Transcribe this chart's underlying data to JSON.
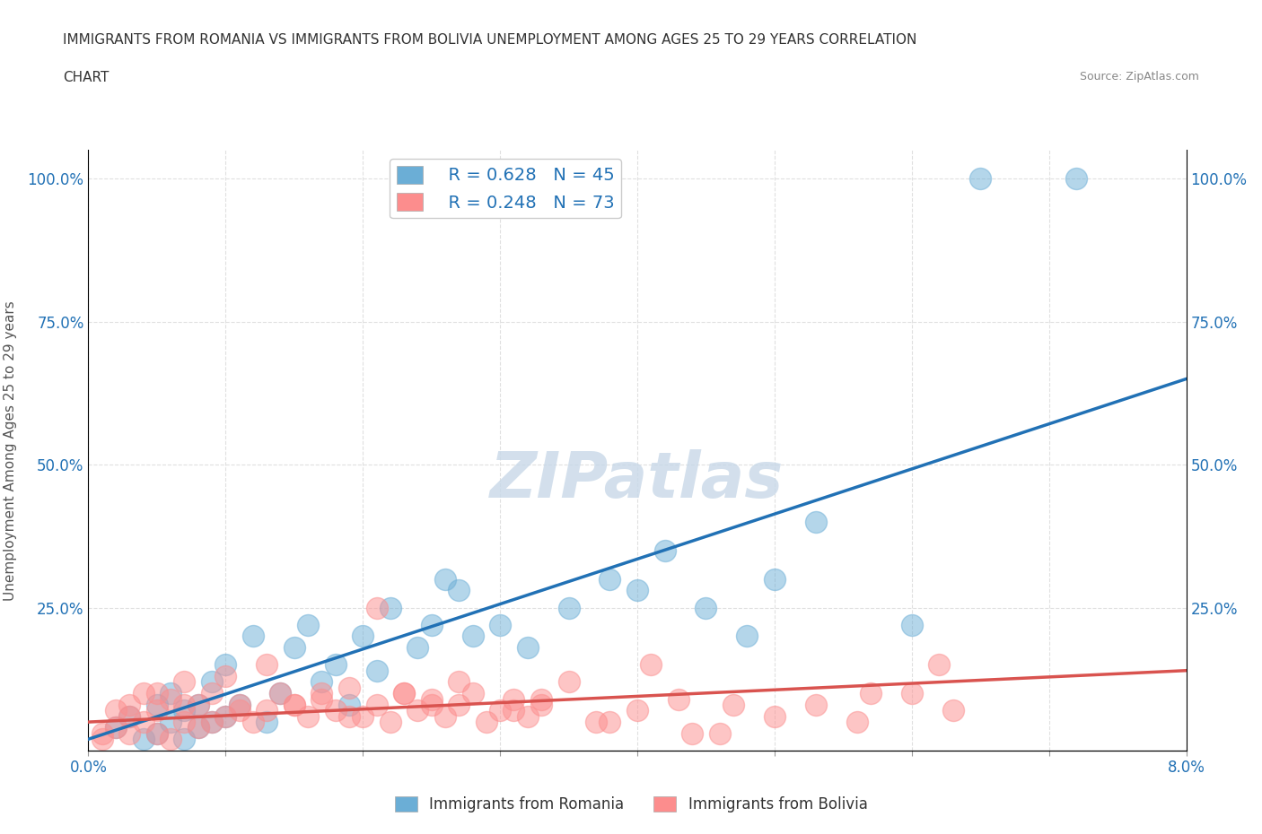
{
  "title_line1": "IMMIGRANTS FROM ROMANIA VS IMMIGRANTS FROM BOLIVIA UNEMPLOYMENT AMONG AGES 25 TO 29 YEARS CORRELATION",
  "title_line2": "CHART",
  "source_text": "Source: ZipAtlas.com",
  "xlabel": "",
  "ylabel": "Unemployment Among Ages 25 to 29 years",
  "xlim": [
    0.0,
    0.08
  ],
  "ylim": [
    0.0,
    1.05
  ],
  "xticks": [
    0.0,
    0.01,
    0.02,
    0.03,
    0.04,
    0.05,
    0.06,
    0.07,
    0.08
  ],
  "xticklabels": [
    "0.0%",
    "",
    "",
    "",
    "",
    "",
    "",
    "",
    "8.0%"
  ],
  "ytick_positions": [
    0.0,
    0.25,
    0.5,
    0.75,
    1.0
  ],
  "ytick_labels": [
    "",
    "25.0%",
    "50.0%",
    "75.0%",
    "100.0%"
  ],
  "romania_color": "#6baed6",
  "bolivia_color": "#fc8d8d",
  "romania_line_color": "#2171b5",
  "bolivia_line_color": "#d9534f",
  "legend_romania_r": "R = 0.628",
  "legend_romania_n": "N = 45",
  "legend_bolivia_r": "R = 0.248",
  "legend_bolivia_n": "N = 73",
  "legend_color_r": "#2171b5",
  "watermark": "ZIPatlas",
  "watermark_color": "#c8d8e8",
  "romania_x": [
    0.002,
    0.003,
    0.004,
    0.005,
    0.005,
    0.006,
    0.006,
    0.007,
    0.007,
    0.008,
    0.008,
    0.009,
    0.009,
    0.01,
    0.01,
    0.011,
    0.012,
    0.013,
    0.014,
    0.015,
    0.016,
    0.017,
    0.018,
    0.019,
    0.02,
    0.021,
    0.022,
    0.024,
    0.025,
    0.026,
    0.027,
    0.028,
    0.03,
    0.032,
    0.035,
    0.038,
    0.04,
    0.042,
    0.045,
    0.048,
    0.05,
    0.053,
    0.06,
    0.065,
    0.072
  ],
  "romania_y": [
    0.04,
    0.06,
    0.02,
    0.08,
    0.03,
    0.05,
    0.1,
    0.02,
    0.07,
    0.04,
    0.08,
    0.05,
    0.12,
    0.06,
    0.15,
    0.08,
    0.2,
    0.05,
    0.1,
    0.18,
    0.22,
    0.12,
    0.15,
    0.08,
    0.2,
    0.14,
    0.25,
    0.18,
    0.22,
    0.3,
    0.28,
    0.2,
    0.22,
    0.18,
    0.25,
    0.3,
    0.28,
    0.35,
    0.25,
    0.2,
    0.3,
    0.4,
    0.22,
    1.0,
    1.0
  ],
  "bolivia_x": [
    0.001,
    0.002,
    0.002,
    0.003,
    0.003,
    0.004,
    0.004,
    0.005,
    0.005,
    0.006,
    0.006,
    0.007,
    0.007,
    0.008,
    0.008,
    0.009,
    0.01,
    0.01,
    0.011,
    0.012,
    0.013,
    0.014,
    0.015,
    0.016,
    0.017,
    0.018,
    0.019,
    0.02,
    0.021,
    0.022,
    0.023,
    0.024,
    0.025,
    0.026,
    0.027,
    0.028,
    0.03,
    0.031,
    0.032,
    0.033,
    0.035,
    0.037,
    0.04,
    0.043,
    0.046,
    0.05,
    0.053,
    0.056,
    0.06,
    0.063,
    0.001,
    0.003,
    0.005,
    0.007,
    0.009,
    0.011,
    0.013,
    0.015,
    0.017,
    0.019,
    0.021,
    0.023,
    0.025,
    0.027,
    0.029,
    0.031,
    0.033,
    0.038,
    0.041,
    0.044,
    0.047,
    0.057,
    0.062
  ],
  "bolivia_y": [
    0.02,
    0.04,
    0.07,
    0.03,
    0.08,
    0.05,
    0.1,
    0.03,
    0.07,
    0.02,
    0.09,
    0.05,
    0.12,
    0.04,
    0.08,
    0.1,
    0.06,
    0.13,
    0.08,
    0.05,
    0.07,
    0.1,
    0.08,
    0.06,
    0.09,
    0.07,
    0.11,
    0.06,
    0.08,
    0.05,
    0.1,
    0.07,
    0.09,
    0.06,
    0.08,
    0.1,
    0.07,
    0.09,
    0.06,
    0.08,
    0.12,
    0.05,
    0.07,
    0.09,
    0.03,
    0.06,
    0.08,
    0.05,
    0.1,
    0.07,
    0.03,
    0.06,
    0.1,
    0.08,
    0.05,
    0.07,
    0.15,
    0.08,
    0.1,
    0.06,
    0.25,
    0.1,
    0.08,
    0.12,
    0.05,
    0.07,
    0.09,
    0.05,
    0.15,
    0.03,
    0.08,
    0.1,
    0.15
  ],
  "background_color": "#ffffff",
  "grid_color": "#e0e0e0",
  "title_color": "#333333",
  "axis_label_color": "#555555",
  "tick_label_color": "#2171b5"
}
